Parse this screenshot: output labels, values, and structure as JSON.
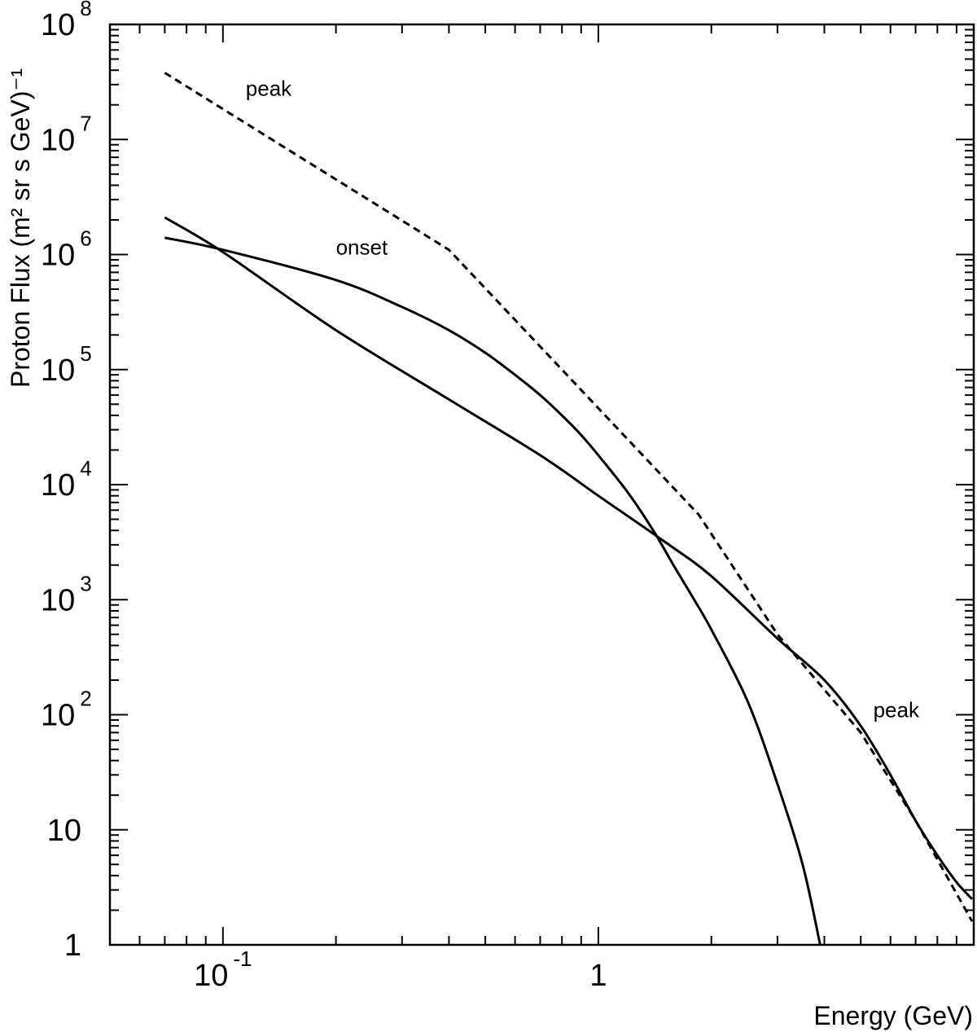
{
  "chart_data": {
    "type": "line",
    "title": "",
    "xlabel": "Energy (GeV)",
    "ylabel": "Proton Flux (m² sr s GeV)⁻¹",
    "xscale": "log",
    "yscale": "log",
    "xlim": [
      0.05,
      10
    ],
    "ylim": [
      1,
      100000000
    ],
    "grid": false,
    "x_ticks": [
      {
        "value": 0.1,
        "base": "10",
        "exp": "-1"
      },
      {
        "value": 1,
        "base": "1",
        "exp": ""
      }
    ],
    "y_ticks": [
      {
        "value": 1,
        "base": "1",
        "exp": ""
      },
      {
        "value": 10,
        "base": "10",
        "exp": ""
      },
      {
        "value": 100,
        "base": "10",
        "exp": "2"
      },
      {
        "value": 1000,
        "base": "10",
        "exp": "3"
      },
      {
        "value": 10000,
        "base": "10",
        "exp": "4"
      },
      {
        "value": 100000,
        "base": "10",
        "exp": "5"
      },
      {
        "value": 1000000,
        "base": "10",
        "exp": "6"
      },
      {
        "value": 10000000,
        "base": "10",
        "exp": "7"
      },
      {
        "value": 100000000,
        "base": "10",
        "exp": "8"
      }
    ],
    "series": [
      {
        "style": "solid",
        "x": [
          0.07,
          0.1,
          0.2,
          0.3,
          0.4,
          0.5,
          0.6,
          0.7,
          0.8,
          0.9,
          1.0,
          1.2,
          1.4,
          1.6,
          1.8,
          2.0,
          2.5,
          3.0,
          3.5,
          3.9
        ],
        "y": [
          1400000,
          1100000,
          600000,
          350000,
          220000,
          140000,
          90000,
          60000,
          40000,
          27000,
          18000,
          8500,
          4000,
          1900,
          1000,
          550,
          130,
          25,
          5,
          1
        ]
      },
      {
        "style": "solid",
        "x": [
          0.07,
          0.1,
          0.2,
          0.4,
          0.7,
          1.0,
          1.5,
          2.0,
          3.0,
          4.0,
          5.0,
          6.0,
          7.0,
          8.0,
          9.0,
          9.9
        ],
        "y": [
          2100000,
          1050000,
          220000,
          55000,
          18000,
          8000,
          3200,
          1600,
          460,
          200,
          80,
          30,
          12,
          6,
          3.5,
          2.5
        ]
      },
      {
        "style": "dashed",
        "x": [
          0.07,
          0.4,
          1.85,
          3.0,
          5.0,
          7.0,
          9.9
        ],
        "y": [
          38000000,
          1100000,
          5500,
          500,
          70,
          12,
          1.6
        ]
      }
    ],
    "annotations": [
      {
        "text": "peak",
        "x": 0.115,
        "y": 24000000
      },
      {
        "text": "onset",
        "x": 0.2,
        "y": 1000000
      },
      {
        "text": "peak",
        "x": 5.4,
        "y": 95
      }
    ]
  }
}
